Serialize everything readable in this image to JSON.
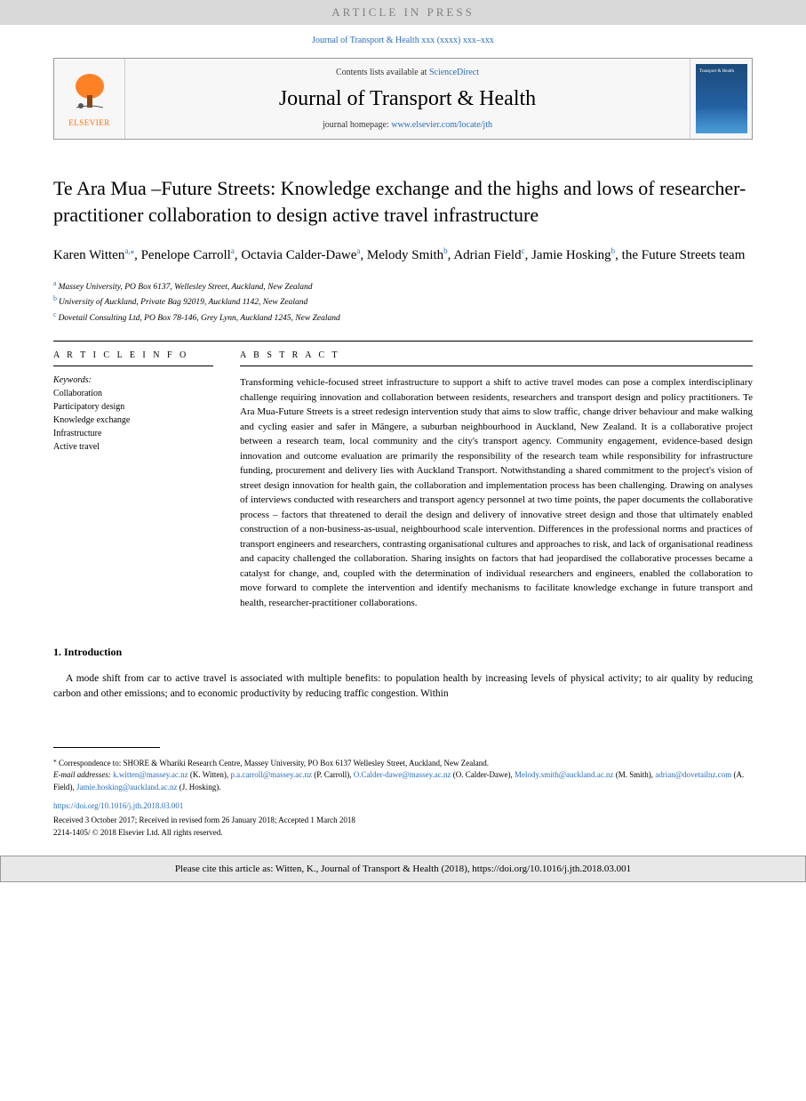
{
  "banner": {
    "text": "ARTICLE IN PRESS"
  },
  "journal_ref": "Journal of Transport & Health xxx (xxxx) xxx–xxx",
  "header": {
    "elsevier": "ELSEVIER",
    "contents_prefix": "Contents lists available at ",
    "contents_link": "ScienceDirect",
    "journal_title": "Journal of Transport & Health",
    "homepage_prefix": "journal homepage: ",
    "homepage_url": "www.elsevier.com/locate/jth",
    "cover_title": "Transport & Health"
  },
  "title": "Te Ara Mua –Future Streets: Knowledge exchange and the highs and lows of researcher-practitioner collaboration to design active travel infrastructure",
  "authors": [
    {
      "name": "Karen Witten",
      "sup": "a,",
      "corr": "⁎"
    },
    {
      "name": "Penelope Carroll",
      "sup": "a"
    },
    {
      "name": "Octavia Calder-Dawe",
      "sup": "a"
    },
    {
      "name": "Melody Smith",
      "sup": "b"
    },
    {
      "name": "Adrian Field",
      "sup": "c"
    },
    {
      "name": "Jamie Hosking",
      "sup": "b"
    },
    {
      "name": "the Future Streets team",
      "sup": ""
    }
  ],
  "affiliations": [
    {
      "sup": "a",
      "text": "Massey University, PO Box 6137, Wellesley Street, Auckland, New Zealand"
    },
    {
      "sup": "b",
      "text": "University of Auckland, Private Bag 92019, Auckland 1142, New Zealand"
    },
    {
      "sup": "c",
      "text": "Dovetail Consulting Ltd, PO Box 78-146, Grey Lynn, Auckland 1245, New Zealand"
    }
  ],
  "article_info_label": "A R T I C L E  I N F O",
  "abstract_label": "A B S T R A C T",
  "keywords_label": "Keywords:",
  "keywords": [
    "Collaboration",
    "Participatory design",
    "Knowledge exchange",
    "Infrastructure",
    "Active travel"
  ],
  "abstract": "Transforming vehicle-focused street infrastructure to support a shift to active travel modes can pose a complex interdisciplinary challenge requiring innovation and collaboration between residents, researchers and transport design and policy practitioners. Te Ara Mua-Future Streets is a street redesign intervention study that aims to slow traffic, change driver behaviour and make walking and cycling easier and safer in Māngere, a suburban neighbourhood in Auckland, New Zealand. It is a collaborative project between a research team, local community and the city's transport agency. Community engagement, evidence-based design innovation and outcome evaluation are primarily the responsibility of the research team while responsibility for infrastructure funding, procurement and delivery lies with Auckland Transport. Notwithstanding a shared commitment to the project's vision of street design innovation for health gain, the collaboration and implementation process has been challenging. Drawing on analyses of interviews conducted with researchers and transport agency personnel at two time points, the paper documents the collaborative process – factors that threatened to derail the design and delivery of innovative street design and those that ultimately enabled construction of a non-business-as-usual, neighbourhood scale intervention. Differences in the professional norms and practices of transport engineers and researchers, contrasting organisational cultures and approaches to risk, and lack of organisational readiness and capacity challenged the collaboration. Sharing insights on factors that had jeopardised the collaborative processes became a catalyst for change, and, coupled with the determination of individual researchers and engineers, enabled the collaboration to move forward to complete the intervention and identify mechanisms to facilitate knowledge exchange in future transport and health, researcher-practitioner collaborations.",
  "section1": {
    "heading": "1.  Introduction",
    "para": "A mode shift from car to active travel is associated with multiple benefits: to population health by increasing levels of physical activity; to air quality by reducing carbon and other emissions; and to economic productivity by reducing traffic congestion. Within"
  },
  "footnotes": {
    "corr_symbol": "⁎",
    "corr_text": " Correspondence to: SHORE & Whariki Research Centre, Massey University, PO Box 6137 Wellesley Street, Auckland, New Zealand.",
    "email_label": "E-mail addresses: ",
    "emails": [
      {
        "addr": "k.witten@massey.ac.nz",
        "who": " (K. Witten), "
      },
      {
        "addr": "p.a.carroll@massey.ac.nz",
        "who": " (P. Carroll), "
      },
      {
        "addr": "O.Calder-dawe@massey.ac.nz",
        "who": " (O. Calder-Dawe), "
      },
      {
        "addr": "Melody.smith@auckland.ac.nz",
        "who": " (M. Smith), "
      },
      {
        "addr": "adrian@dovetailnz.com",
        "who": " (A. Field), "
      },
      {
        "addr": "Jamie.hosking@auckland.ac.nz",
        "who": " (J. Hosking)."
      }
    ],
    "doi": "https://doi.org/10.1016/j.jth.2018.03.001",
    "received": "Received 3 October 2017; Received in revised form 26 January 2018; Accepted 1 March 2018",
    "copyright": "2214-1405/ © 2018 Elsevier Ltd. All rights reserved."
  },
  "cite_box": "Please cite this article as: Witten, K., Journal of Transport & Health (2018), https://doi.org/10.1016/j.jth.2018.03.001",
  "colors": {
    "link": "#2a6ebb",
    "banner_bg": "#d9d9d9",
    "banner_fg": "#808080",
    "elsevier_orange": "#ff6c00",
    "cover_top": "#1b4b7a",
    "cover_bottom": "#2a6ebb",
    "cite_bg": "#e8e8e8"
  }
}
